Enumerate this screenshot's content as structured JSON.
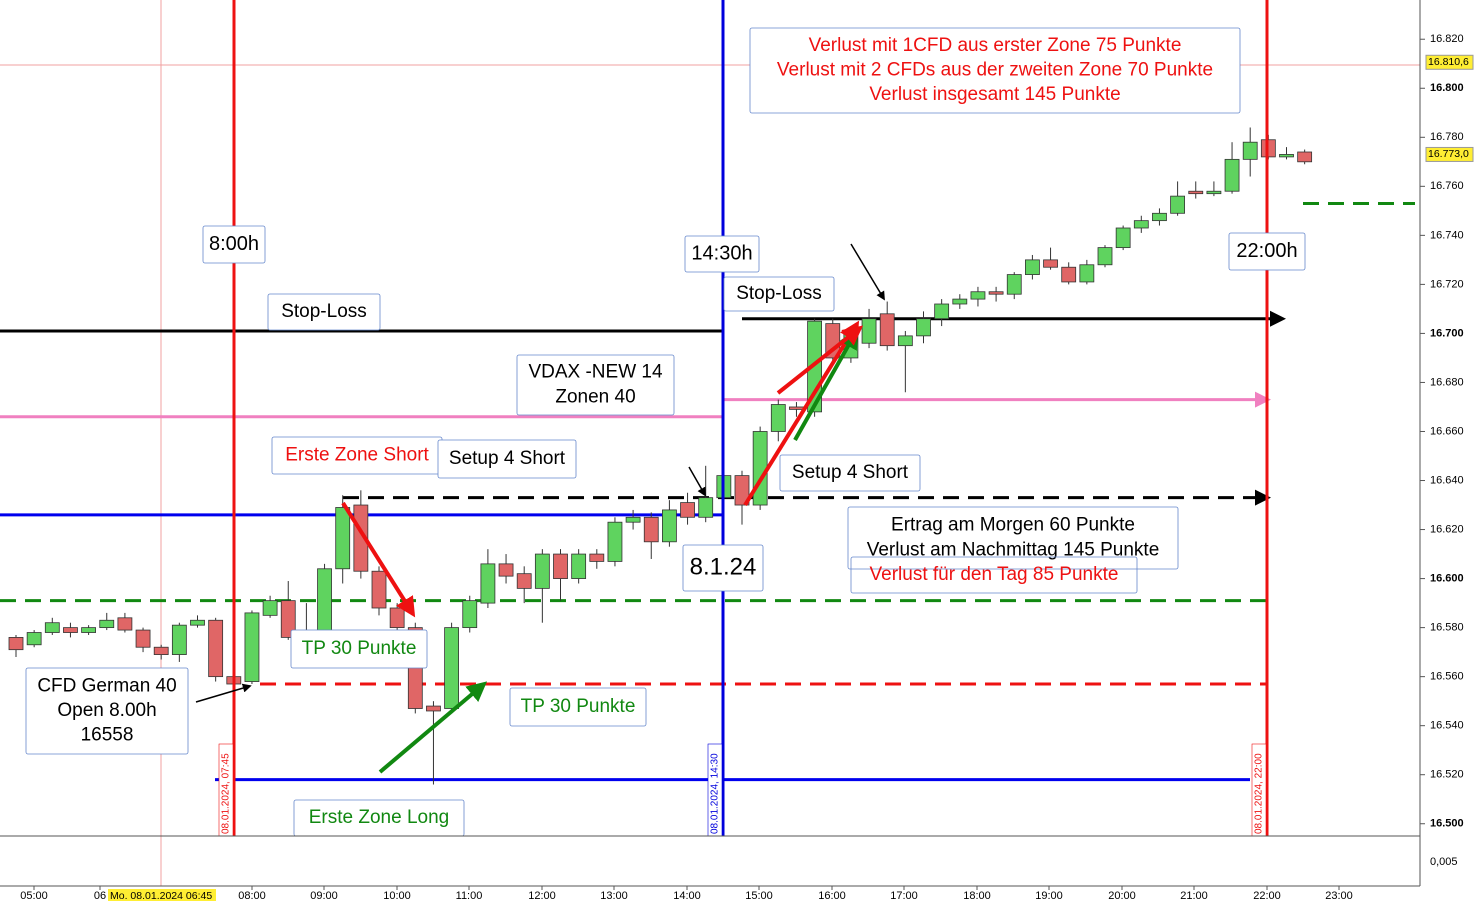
{
  "chart_data": {
    "type": "candlestick",
    "ylim": [
      16495,
      16836
    ],
    "yticks": [
      {
        "value": 16500,
        "label": "16.500"
      },
      {
        "value": 16520,
        "label": "16.520"
      },
      {
        "value": 16540,
        "label": "16.540"
      },
      {
        "value": 16560,
        "label": "16.560"
      },
      {
        "value": 16580,
        "label": "16.580"
      },
      {
        "value": 16600,
        "label": "16.600"
      },
      {
        "value": 16620,
        "label": "16.620"
      },
      {
        "value": 16640,
        "label": "16.640"
      },
      {
        "value": 16660,
        "label": "16.660"
      },
      {
        "value": 16680,
        "label": "16.680"
      },
      {
        "value": 16700,
        "label": "16.700"
      },
      {
        "value": 16720,
        "label": "16.720"
      },
      {
        "value": 16740,
        "label": "16.740"
      },
      {
        "value": 16760,
        "label": "16.760"
      },
      {
        "value": 16780,
        "label": "16.780"
      },
      {
        "value": 16800,
        "label": "16.800"
      },
      {
        "value": 16820,
        "label": "16.820"
      }
    ],
    "price_tags": [
      {
        "value": 16810.6,
        "label": "16.810,6"
      },
      {
        "value": 16773,
        "label": "16.773,0"
      }
    ],
    "lower_panel_tick": "0,005",
    "xtick_labels": [
      "05:00",
      "06",
      "08:00",
      "09:00",
      "10:00",
      "11:00",
      "12:00",
      "13:00",
      "14:00",
      "15:00",
      "16:00",
      "17:00",
      "18:00",
      "19:00",
      "20:00",
      "21:00",
      "22:00",
      "23:00"
    ],
    "date_label": "Mo. 08.01.2024 06:45",
    "up_color": "#5fd35f",
    "down_color": "#e06666",
    "open": [
      16576,
      16573,
      16578,
      16580,
      16578,
      16580,
      16584,
      16579,
      16572,
      16569,
      16581,
      16583,
      16560,
      16558,
      16585,
      16591,
      16576,
      16578,
      16604,
      16630,
      16603,
      16588,
      16580,
      16548,
      16547,
      16580,
      16590,
      16606,
      16602,
      16596,
      16610,
      16600,
      16610,
      16607,
      16623,
      16625,
      16615,
      16631,
      16625,
      16633,
      16642,
      16630,
      16660,
      16670,
      16668,
      16704,
      16690,
      16696,
      16708,
      16695,
      16699,
      16706,
      16712,
      16714,
      16717,
      16716,
      16724,
      16730,
      16727,
      16721,
      16728,
      16735,
      16743,
      16746,
      16749,
      16758,
      16757,
      16758,
      16771,
      16779,
      16772,
      16774
    ],
    "high": [
      16577,
      16579,
      16584,
      16582,
      16581,
      16586,
      16586,
      16580,
      16573,
      16582,
      16585,
      16584,
      16561,
      16587,
      16593,
      16599,
      16590,
      16606,
      16634,
      16636,
      16605,
      16590,
      16582,
      16550,
      16582,
      16593,
      16612,
      16610,
      16605,
      16612,
      16612,
      16612,
      16612,
      16625,
      16628,
      16627,
      16632,
      16635,
      16646,
      16642,
      16644,
      16662,
      16673,
      16672,
      16706,
      16706,
      16703,
      16710,
      16713,
      16701,
      16709,
      16714,
      16716,
      16719,
      16719,
      16725,
      16732,
      16735,
      16729,
      16730,
      16736,
      16744,
      16748,
      16751,
      16762,
      16762,
      16762,
      16778,
      16784,
      16781,
      16776,
      16775
    ],
    "low": [
      16568,
      16572,
      16577,
      16576,
      16577,
      16579,
      16578,
      16570,
      16567,
      16566,
      16580,
      16558,
      16556,
      16557,
      16584,
      16575,
      16575,
      16576,
      16598,
      16600,
      16585,
      16575,
      16545,
      16516,
      16545,
      16578,
      16588,
      16598,
      16590,
      16582,
      16591,
      16598,
      16604,
      16605,
      16620,
      16608,
      16613,
      16622,
      16623,
      16630,
      16622,
      16628,
      16656,
      16666,
      16666,
      16688,
      16688,
      16694,
      16693,
      16676,
      16696,
      16703,
      16710,
      16711,
      16713,
      16714,
      16722,
      16726,
      16720,
      16720,
      16727,
      16734,
      16741,
      16744,
      16748,
      16755,
      16756,
      16757,
      16764,
      16771,
      16771,
      16769
    ],
    "close": [
      16571,
      16578,
      16582,
      16578,
      16580,
      16583,
      16579,
      16572,
      16569,
      16581,
      16583,
      16560,
      16557,
      16586,
      16591,
      16576,
      16578,
      16604,
      16629,
      16603,
      16588,
      16580,
      16547,
      16546,
      16580,
      16591,
      16606,
      16601,
      16596,
      16610,
      16600,
      16610,
      16607,
      16623,
      16625,
      16615,
      16628,
      16625,
      16633,
      16642,
      16630,
      16660,
      16671,
      16669,
      16705,
      16690,
      16700,
      16706,
      16695,
      16699,
      16706,
      16712,
      16714,
      16717,
      16716,
      16724,
      16730,
      16727,
      16721,
      16728,
      16735,
      16743,
      16746,
      16749,
      16756,
      16757,
      16758,
      16771,
      16778,
      16772,
      16773,
      16770
    ],
    "levels": [
      {
        "value": 16701,
        "color": "#000000",
        "dashed": false
      },
      {
        "value": 16706,
        "color": "#000000",
        "dashed": false
      },
      {
        "value": 16666,
        "color": "#f080c0",
        "dashed": false
      },
      {
        "value": 16673,
        "color": "#f080c0",
        "dashed": false
      },
      {
        "value": 16626,
        "color": "#0000ee",
        "dashed": false
      },
      {
        "value": 16633,
        "color": "#000000",
        "dashed": true
      },
      {
        "value": 16591,
        "color": "#118811",
        "dashed": true
      },
      {
        "value": 16753,
        "color": "#118811",
        "dashed": true
      },
      {
        "value": 16557,
        "color": "#ee1111",
        "dashed": true
      },
      {
        "value": 16518,
        "color": "#0000ee",
        "dashed": false
      }
    ],
    "vlines": [
      {
        "label": "08.01.2024, 07:45",
        "color": "#ee1111"
      },
      {
        "label": "08.01.2024, 14:30",
        "color": "#0000dd"
      },
      {
        "label": "08.01.2024, 22:00",
        "color": "#ee1111"
      }
    ],
    "annotations": [
      {
        "lines": [
          "8:00h"
        ],
        "color": "#000000"
      },
      {
        "lines": [
          "14:30h"
        ],
        "color": "#000000"
      },
      {
        "lines": [
          "22:00h"
        ],
        "color": "#000000"
      },
      {
        "lines": [
          "Stop-Loss"
        ],
        "color": "#000000"
      },
      {
        "lines": [
          "Stop-Loss"
        ],
        "color": "#000000"
      },
      {
        "lines": [
          "VDAX -NEW 14",
          "Zonen 40"
        ],
        "color": "#000000"
      },
      {
        "lines": [
          "Erste Zone Short"
        ],
        "color": "#ee1111"
      },
      {
        "lines": [
          "Setup 4 Short"
        ],
        "color": "#000000"
      },
      {
        "lines": [
          "Setup 4 Short"
        ],
        "color": "#000000"
      },
      {
        "lines": [
          "8.1.24"
        ],
        "color": "#000000"
      },
      {
        "lines": [
          "Ertrag am Morgen 60 Punkte",
          "Verlust am Nachmittag 145 Punkte"
        ],
        "color": "#000000"
      },
      {
        "lines": [
          "Verlust für den Tag 85 Punkte"
        ],
        "color": "#ee1111"
      },
      {
        "lines": [
          "TP 30 Punkte"
        ],
        "color": "#118811"
      },
      {
        "lines": [
          "TP 30 Punkte"
        ],
        "color": "#118811"
      },
      {
        "lines": [
          "CFD German 40",
          "Open 8.00h",
          "16558"
        ],
        "color": "#000000"
      },
      {
        "lines": [
          "Erste Zone Long"
        ],
        "color": "#118811"
      },
      {
        "lines": [
          "Verlust mit 1CFD aus erster Zone 75 Punkte",
          "Verlust mit 2 CFDs aus der zweiten Zone 70 Punkte",
          "Verlust insgesamt 145 Punkte"
        ],
        "color": "#ee1111"
      }
    ]
  }
}
